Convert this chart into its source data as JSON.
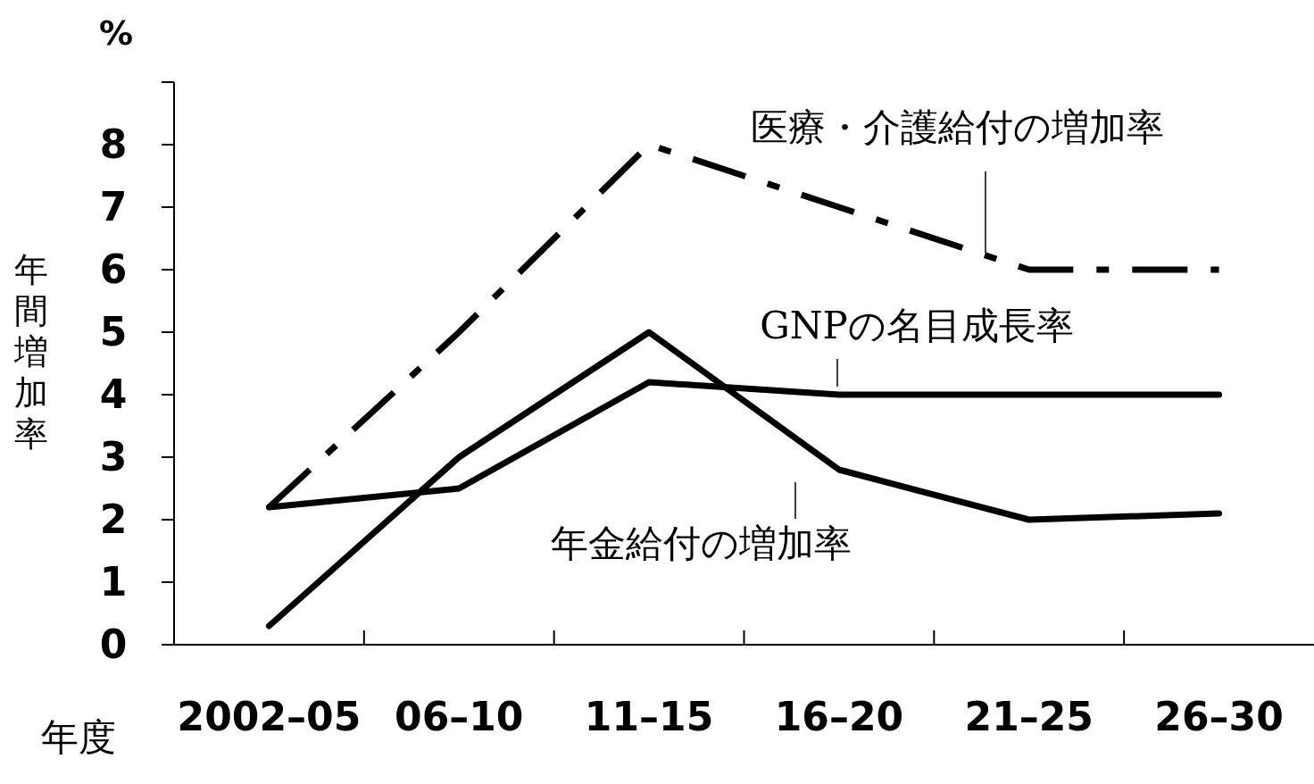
{
  "chart_data": {
    "type": "line",
    "xlabel": "年度",
    "ylabel": "年間増加率",
    "annotations": [
      "%"
    ],
    "categories": [
      "2002–05",
      "06–10",
      "11–15",
      "16–20",
      "21–25",
      "26–30"
    ],
    "ylim": [
      0,
      9
    ],
    "yticks": [
      0,
      1,
      2,
      3,
      4,
      5,
      6,
      7,
      8,
      {
        "value": 9,
        "label": null
      }
    ],
    "series": [
      {
        "name": "医療・介護給付の増加率",
        "color": "#000000",
        "line_style": "dashed",
        "values": [
          2.2,
          5.0,
          8.0,
          7.0,
          6.0,
          6.0
        ]
      },
      {
        "name": "GNPの名目成長率",
        "color": "#000000",
        "values": [
          2.2,
          2.5,
          4.2,
          4.0,
          4.0,
          4.0
        ]
      },
      {
        "name": "年金給付の増加率",
        "color": "#000000",
        "values": [
          0.3,
          3.0,
          5.0,
          2.8,
          2.0,
          2.1
        ]
      }
    ]
  }
}
